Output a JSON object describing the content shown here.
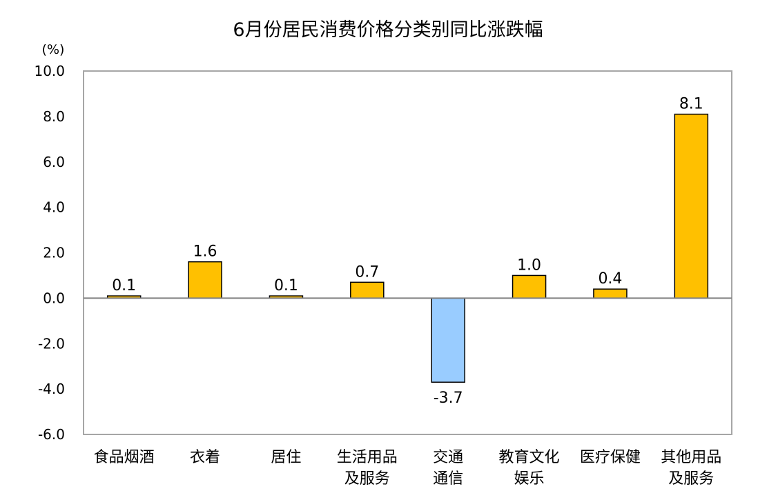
{
  "chart_data": {
    "type": "bar",
    "title": "6月份居民消费价格分类别同比涨跌幅",
    "unit_label": "(%)",
    "ylim": [
      -6.0,
      10.0
    ],
    "yticks": [
      "10.0",
      "8.0",
      "6.0",
      "4.0",
      "2.0",
      "0.0",
      "-2.0",
      "-4.0",
      "-6.0"
    ],
    "grid": false,
    "legend": "none",
    "categories": [
      [
        "食品烟酒"
      ],
      [
        "衣着"
      ],
      [
        "居住"
      ],
      [
        "生活用品",
        "及服务"
      ],
      [
        "交通",
        "通信"
      ],
      [
        "教育文化",
        "娱乐"
      ],
      [
        "医疗保健"
      ],
      [
        "其他用品",
        "及服务"
      ]
    ],
    "values": [
      0.1,
      1.6,
      0.1,
      0.7,
      -3.7,
      1.0,
      0.4,
      8.1
    ],
    "value_labels": [
      "0.1",
      "1.6",
      "0.1",
      "0.7",
      "-3.7",
      "1.0",
      "0.4",
      "8.1"
    ],
    "colors": {
      "positive": "#FFC000",
      "negative": "#99CCFF",
      "bar_edge": "#000000",
      "frame": "#A6A6A6",
      "zero_line": "#808080"
    }
  }
}
